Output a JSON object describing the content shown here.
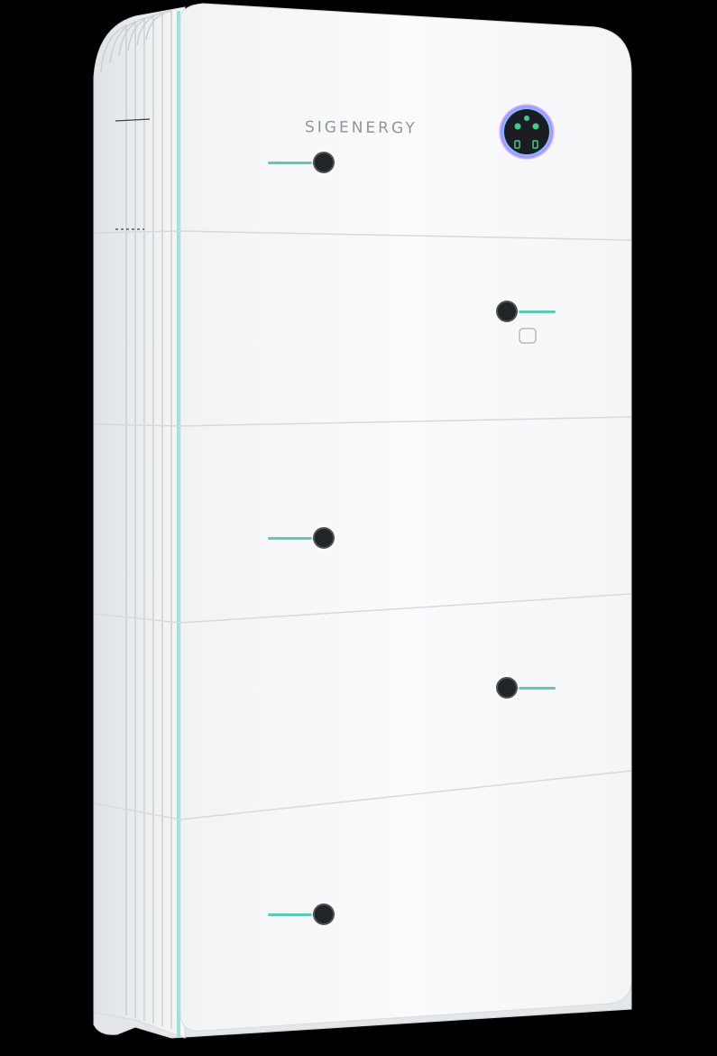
{
  "product": {
    "brand_label": "SIGENERGY",
    "accent_color": "#5ccab8",
    "body_color": "#f8f9fa",
    "hotspot_dot_color": "#222528",
    "display_ring_colors": [
      "#7fd6ff",
      "#b38cff"
    ],
    "display_icons": [
      "battery-icon",
      "grid-icon",
      "solar-icon",
      "home-icon",
      "status-icon"
    ]
  },
  "hotspots": [
    {
      "id": "control-module-hotspot",
      "icon": "dot-marker-icon"
    },
    {
      "id": "module-2-hotspot",
      "icon": "dot-marker-icon"
    },
    {
      "id": "module-3-hotspot",
      "icon": "dot-marker-icon"
    },
    {
      "id": "module-4-hotspot",
      "icon": "dot-marker-icon"
    },
    {
      "id": "module-5-hotspot",
      "icon": "dot-marker-icon"
    }
  ]
}
